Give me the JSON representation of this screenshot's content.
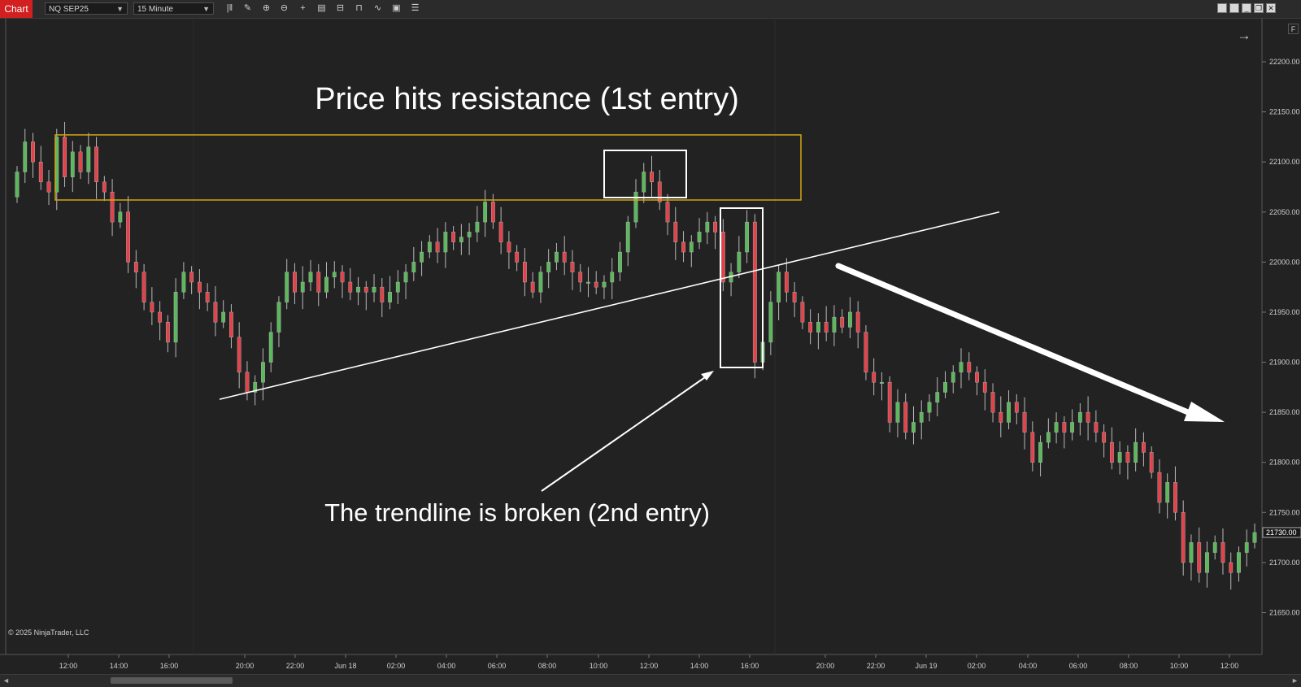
{
  "toolbar": {
    "chart_tab": "Chart",
    "instrument": "NQ SEP25",
    "interval": "15 Minute",
    "tools": [
      "bars-icon",
      "pencil-icon",
      "zoom-in-icon",
      "zoom-out-icon",
      "crosshair-icon",
      "data-box-icon",
      "properties-icon",
      "drawing-tools-icon",
      "strategy-icon",
      "list-icon"
    ]
  },
  "copyright": "© 2025 NinjaTrader, LLC",
  "f_button": "F",
  "colors": {
    "up": "#5cb85c",
    "down": "#e2434b",
    "zone": "#d4a614",
    "annotation": "#ffffff",
    "background": "#222222"
  },
  "annotations": {
    "resistance": "Price hits resistance (1st entry)",
    "trendline": "The trendline is broken (2nd entry)"
  },
  "chart_data": {
    "type": "candlestick",
    "instrument": "NQ SEP25",
    "interval": "15 Minute",
    "y_ticks": [
      22200,
      22150,
      22100,
      22050,
      22000,
      21950,
      21900,
      21850,
      21800,
      21750,
      21700,
      21650
    ],
    "ylim": [
      21630,
      22240
    ],
    "current_price": "21730.00",
    "x_ticks": [
      "12:00",
      "14:00",
      "16:00",
      "20:00",
      "22:00",
      "Jun 18",
      "02:00",
      "04:00",
      "06:00",
      "08:00",
      "10:00",
      "12:00",
      "14:00",
      "16:00",
      "20:00",
      "22:00",
      "Jun 19",
      "02:00",
      "04:00",
      "06:00",
      "08:00",
      "10:00",
      "12:00"
    ],
    "resistance_zone": [
      22062,
      22127
    ],
    "trendline": [
      [
        21863,
        "Jun 17 19:00"
      ],
      [
        22050,
        "Jun 19 01:00"
      ]
    ],
    "closes": [
      22090,
      22120,
      22100,
      22080,
      22070,
      22125,
      22085,
      22110,
      22090,
      22115,
      22080,
      22070,
      22040,
      22050,
      22000,
      21990,
      21960,
      21950,
      21940,
      21920,
      21970,
      21990,
      21980,
      21970,
      21960,
      21940,
      21950,
      21925,
      21890,
      21870,
      21880,
      21900,
      21930,
      21960,
      21990,
      21970,
      21980,
      21990,
      21970,
      21985,
      21990,
      21980,
      21970,
      21975,
      21970,
      21975,
      21960,
      21970,
      21980,
      21990,
      22000,
      22010,
      22020,
      22010,
      22030,
      22020,
      22025,
      22030,
      22040,
      22060,
      22040,
      22020,
      22010,
      22000,
      21980,
      21970,
      21990,
      22000,
      22010,
      22000,
      21990,
      21980,
      21980,
      21975,
      21980,
      21990,
      22010,
      22040,
      22070,
      22090,
      22080,
      22060,
      22040,
      22020,
      22010,
      22020,
      22030,
      22040,
      22030,
      21980,
      21990,
      22010,
      22040,
      21900,
      21920,
      21960,
      21990,
      21970,
      21960,
      21940,
      21930,
      21940,
      21930,
      21945,
      21935,
      21950,
      21930,
      21890,
      21880,
      21880,
      21840,
      21860,
      21830,
      21840,
      21850,
      21860,
      21870,
      21880,
      21890,
      21900,
      21890,
      21880,
      21870,
      21850,
      21840,
      21860,
      21850,
      21830,
      21800,
      21820,
      21830,
      21840,
      21830,
      21840,
      21850,
      21840,
      21830,
      21820,
      21800,
      21810,
      21800,
      21820,
      21810,
      21790,
      21760,
      21780,
      21750,
      21700,
      21720,
      21690,
      21710,
      21720,
      21700,
      21690,
      21710,
      21720,
      21730
    ]
  }
}
